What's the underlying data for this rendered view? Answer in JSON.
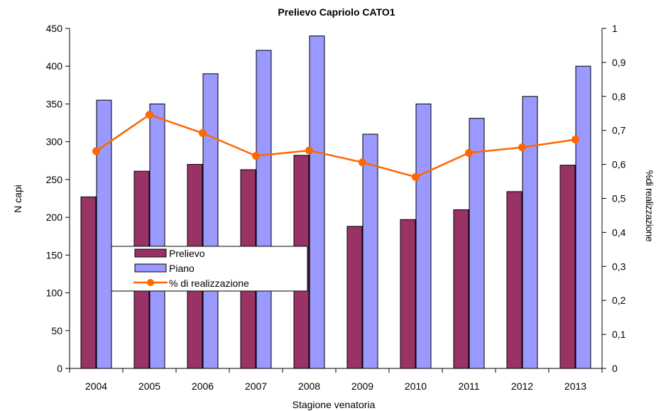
{
  "chart_data": {
    "type": "bar",
    "title": "Prelievo Capriolo CATO1",
    "xlabel": "Stagione venatoria",
    "ylabel": "N capi",
    "y2label": "%di realizzazione",
    "categories": [
      "2004",
      "2005",
      "2006",
      "2007",
      "2008",
      "2009",
      "2010",
      "2011",
      "2012",
      "2013"
    ],
    "series": [
      {
        "name": "Prelievo",
        "type": "bar",
        "axis": "left",
        "color": "#993366",
        "values": [
          227,
          261,
          270,
          263,
          282,
          188,
          197,
          210,
          234,
          269
        ]
      },
      {
        "name": "Piano",
        "type": "bar",
        "axis": "left",
        "color": "#9999ff",
        "values": [
          355,
          350,
          390,
          421,
          440,
          310,
          350,
          331,
          360,
          400
        ]
      },
      {
        "name": "% di realizzazione",
        "type": "line",
        "axis": "right",
        "color": "#ff6600",
        "values": [
          0.639,
          0.746,
          0.692,
          0.625,
          0.641,
          0.606,
          0.563,
          0.634,
          0.65,
          0.673
        ]
      }
    ],
    "ylim": [
      0,
      450
    ],
    "yticks": [
      "0",
      "50",
      "100",
      "150",
      "200",
      "250",
      "300",
      "350",
      "400",
      "450"
    ],
    "y2lim": [
      0,
      1
    ],
    "y2ticks": [
      "0",
      "0,1",
      "0,2",
      "0,3",
      "0,4",
      "0,5",
      "0,6",
      "0,7",
      "0,8",
      "0,9",
      "1"
    ],
    "grid": false,
    "legend_position": "left-center"
  }
}
